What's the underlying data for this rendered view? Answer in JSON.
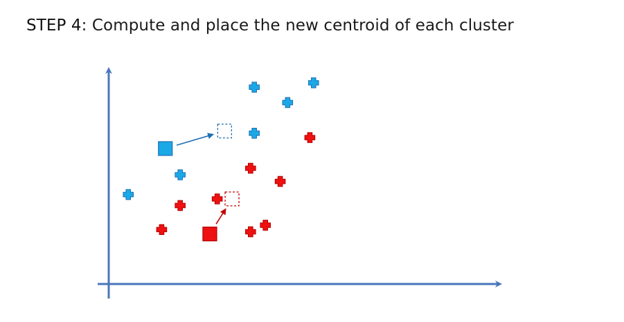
{
  "heading": {
    "step_label": "STEP 4",
    "text": ": Compute and place the new centroid of each cluster"
  },
  "colors": {
    "axis": "#4a76bb",
    "blue_cluster": "#1aa8e6",
    "blue_cluster_stroke": "#1f6fb5",
    "red_cluster": "#ee1111",
    "red_cluster_stroke": "#b50000",
    "blue_arrow": "#1f6fb5",
    "red_arrow": "#c00000"
  },
  "chart_data": {
    "type": "scatter",
    "title": "",
    "xlabel": "",
    "ylabel": "",
    "xlim": [
      0,
      100
    ],
    "ylim": [
      0,
      100
    ],
    "series": [
      {
        "cluster": "blue",
        "points": [
          {
            "x": 15,
            "y": 38
          },
          {
            "x": 29,
            "y": 47
          },
          {
            "x": 49,
            "y": 66
          },
          {
            "x": 49,
            "y": 87
          },
          {
            "x": 58,
            "y": 80
          },
          {
            "x": 65,
            "y": 89
          }
        ]
      },
      {
        "cluster": "red",
        "points": [
          {
            "x": 24,
            "y": 22
          },
          {
            "x": 29,
            "y": 33
          },
          {
            "x": 39,
            "y": 36
          },
          {
            "x": 48,
            "y": 50
          },
          {
            "x": 48,
            "y": 21
          },
          {
            "x": 52,
            "y": 24
          },
          {
            "x": 56,
            "y": 44
          },
          {
            "x": 64,
            "y": 64
          }
        ]
      }
    ],
    "centroids": [
      {
        "cluster": "blue",
        "old": {
          "x": 25,
          "y": 59
        },
        "new": {
          "x": 41,
          "y": 67
        }
      },
      {
        "cluster": "red",
        "old": {
          "x": 37,
          "y": 20
        },
        "new": {
          "x": 43,
          "y": 36
        }
      }
    ]
  }
}
